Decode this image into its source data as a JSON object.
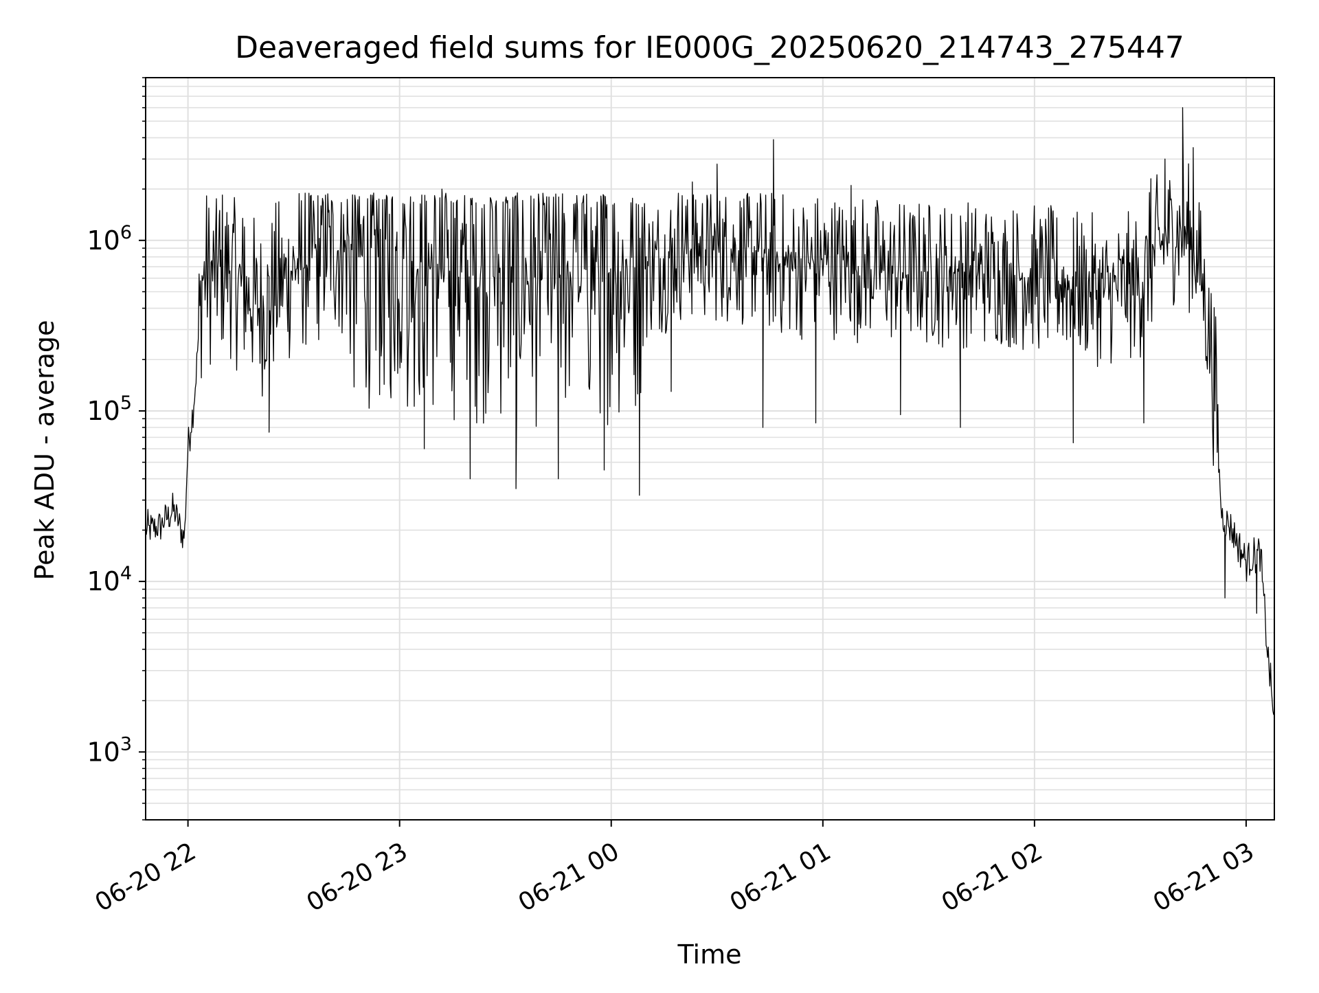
{
  "chart_data": {
    "type": "line",
    "title": "Deaveraged field sums for IE000G_20250620_214743_275447",
    "xlabel": "Time",
    "ylabel": "Peak ADU - average",
    "y_scale": "log",
    "x_range": [
      "2025-06-20 21:48",
      "2025-06-21 03:08"
    ],
    "ylim": [
      400,
      9000000
    ],
    "x_ticks": [
      {
        "label": "06-20 22",
        "time": "2025-06-20 22:00"
      },
      {
        "label": "06-20 23",
        "time": "2025-06-20 23:00"
      },
      {
        "label": "06-21 00",
        "time": "2025-06-21 00:00"
      },
      {
        "label": "06-21 01",
        "time": "2025-06-21 01:00"
      },
      {
        "label": "06-21 02",
        "time": "2025-06-21 02:00"
      },
      {
        "label": "06-21 03",
        "time": "2025-06-21 03:00"
      }
    ],
    "y_ticks": [
      {
        "base": "10",
        "exp": "3",
        "value": 1000
      },
      {
        "base": "10",
        "exp": "4",
        "value": 10000
      },
      {
        "base": "10",
        "exp": "5",
        "value": 100000
      },
      {
        "base": "10",
        "exp": "6",
        "value": 1000000
      }
    ],
    "grid": true,
    "line_color": "#000000",
    "grid_color": "#e0e0e0",
    "series": [
      {
        "points": [
          [
            "2025-06-20 21:48",
            20000
          ],
          [
            "2025-06-20 21:52",
            21000
          ],
          [
            "2025-06-20 21:56",
            26000
          ],
          [
            "2025-06-20 21:59",
            18000
          ],
          [
            "2025-06-20 22:00",
            60000
          ],
          [
            "2025-06-20 22:02",
            130000
          ],
          [
            "2025-06-20 22:04",
            600000
          ],
          [
            "2025-06-20 22:08",
            650000
          ],
          [
            "2025-06-20 22:12",
            700000
          ],
          [
            "2025-06-20 22:16",
            500000
          ],
          [
            "2025-06-20 22:20",
            400000
          ],
          [
            "2025-06-20 22:25",
            500000
          ],
          [
            "2025-06-20 22:30",
            700000
          ],
          [
            "2025-06-20 22:35",
            800000
          ],
          [
            "2025-06-20 22:40",
            900000
          ],
          [
            "2025-06-20 22:50",
            800000
          ],
          [
            "2025-06-20 23:00",
            800000
          ],
          [
            "2025-06-20 23:10",
            700000
          ],
          [
            "2025-06-20 23:20",
            650000
          ],
          [
            "2025-06-20 23:30",
            650000
          ],
          [
            "2025-06-20 23:40",
            600000
          ],
          [
            "2025-06-20 23:50",
            650000
          ],
          [
            "2025-06-21 00:00",
            650000
          ],
          [
            "2025-06-21 00:10",
            700000
          ],
          [
            "2025-06-21 00:20",
            900000
          ],
          [
            "2025-06-21 00:30",
            900000
          ],
          [
            "2025-06-21 00:40",
            850000
          ],
          [
            "2025-06-21 00:50",
            700000
          ],
          [
            "2025-06-21 01:00",
            750000
          ],
          [
            "2025-06-21 01:10",
            700000
          ],
          [
            "2025-06-21 01:20",
            650000
          ],
          [
            "2025-06-21 01:30",
            650000
          ],
          [
            "2025-06-21 01:40",
            650000
          ],
          [
            "2025-06-21 01:50",
            650000
          ],
          [
            "2025-06-21 02:00",
            600000
          ],
          [
            "2025-06-21 02:10",
            550000
          ],
          [
            "2025-06-21 02:20",
            500000
          ],
          [
            "2025-06-21 02:30",
            550000
          ],
          [
            "2025-06-21 02:35",
            900000
          ],
          [
            "2025-06-21 02:40",
            1200000
          ],
          [
            "2025-06-21 02:45",
            1000000
          ],
          [
            "2025-06-21 02:48",
            500000
          ],
          [
            "2025-06-21 02:51",
            150000
          ],
          [
            "2025-06-21 02:53",
            25000
          ],
          [
            "2025-06-21 02:56",
            20000
          ],
          [
            "2025-06-21 03:00",
            13000
          ],
          [
            "2025-06-21 03:04",
            15000
          ],
          [
            "2025-06-21 03:06",
            4000
          ],
          [
            "2025-06-21 03:08",
            1500
          ]
        ],
        "spikes_up": [
          [
            "2025-06-20 22:09",
            1500000
          ],
          [
            "2025-06-20 22:16",
            1200000
          ],
          [
            "2025-06-20 22:40",
            1500000
          ],
          [
            "2025-06-20 23:12",
            2000000
          ],
          [
            "2025-06-20 23:30",
            1700000
          ],
          [
            "2025-06-21 00:23",
            2200000
          ],
          [
            "2025-06-21 00:30",
            2800000
          ],
          [
            "2025-06-21 00:46",
            3900000
          ],
          [
            "2025-06-21 01:08",
            2100000
          ],
          [
            "2025-06-21 02:33",
            2300000
          ],
          [
            "2025-06-21 02:37",
            3000000
          ],
          [
            "2025-06-21 02:42",
            6000000
          ],
          [
            "2025-06-21 02:45",
            3500000
          ]
        ],
        "spikes_down": [
          [
            "2025-06-20 22:23",
            75000
          ],
          [
            "2025-06-20 23:07",
            60000
          ],
          [
            "2025-06-20 23:20",
            40000
          ],
          [
            "2025-06-20 23:33",
            35000
          ],
          [
            "2025-06-20 23:45",
            40000
          ],
          [
            "2025-06-20 23:58",
            45000
          ],
          [
            "2025-06-21 00:08",
            32000
          ],
          [
            "2025-06-21 00:17",
            130000
          ],
          [
            "2025-06-21 00:43",
            80000
          ],
          [
            "2025-06-21 00:58",
            85000
          ],
          [
            "2025-06-21 01:22",
            95000
          ],
          [
            "2025-06-21 01:39",
            80000
          ],
          [
            "2025-06-21 02:11",
            65000
          ],
          [
            "2025-06-21 02:31",
            85000
          ],
          [
            "2025-06-21 02:54",
            8000
          ],
          [
            "2025-06-21 03:03",
            6500
          ]
        ]
      }
    ]
  }
}
